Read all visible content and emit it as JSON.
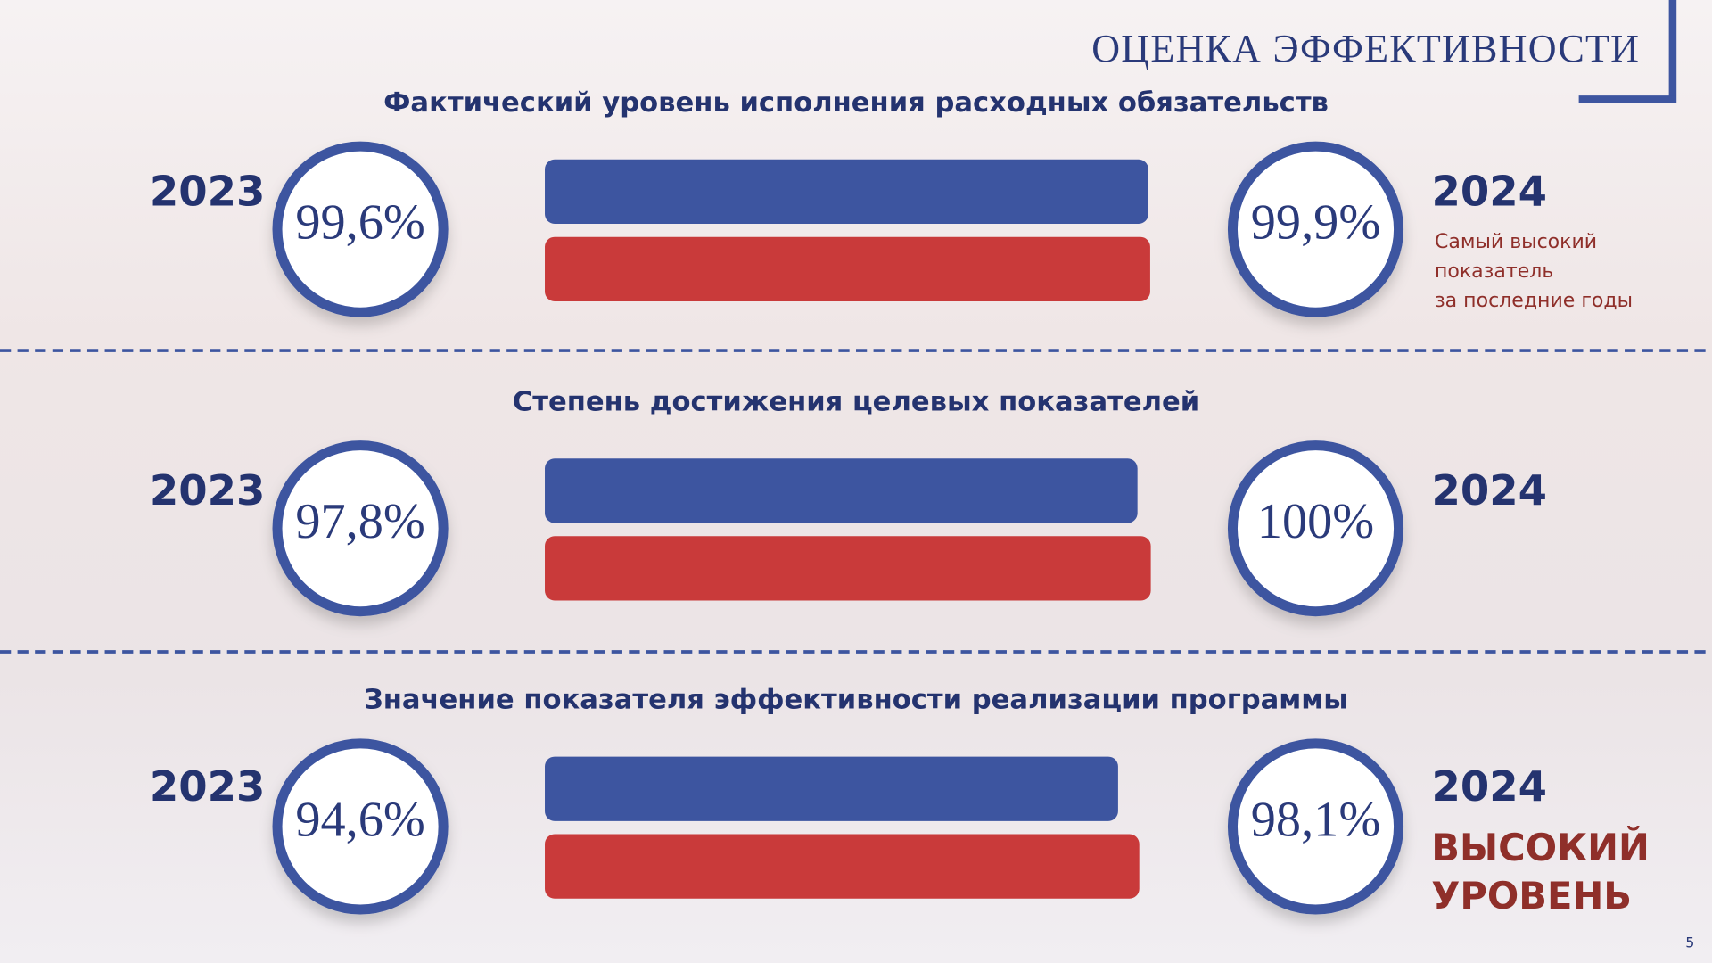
{
  "header": {
    "title": "ОЦЕНКА ЭФФЕКТИВНОСТИ"
  },
  "page_number": "5",
  "chart_data": [
    {
      "type": "bar",
      "title": "Фактический уровень исполнения расходных обязательств",
      "categories": [
        "2023",
        "2024"
      ],
      "values": [
        99.6,
        99.9
      ],
      "value_labels": [
        "99,6%",
        "99,9%"
      ],
      "colors": [
        "#3d55a0",
        "#c93a3a"
      ],
      "annotation": [
        "Самый высокий",
        "показатель",
        "за последние годы"
      ]
    },
    {
      "type": "bar",
      "title": "Степень достижения целевых показателей",
      "categories": [
        "2023",
        "2024"
      ],
      "values": [
        97.8,
        100
      ],
      "value_labels": [
        "97,8%",
        "100%"
      ],
      "colors": [
        "#3d55a0",
        "#c93a3a"
      ]
    },
    {
      "type": "bar",
      "title": "Значение показателя эффективности реализации программы",
      "categories": [
        "2023",
        "2024"
      ],
      "values": [
        94.6,
        98.1
      ],
      "value_labels": [
        "94,6%",
        "98,1%"
      ],
      "colors": [
        "#3d55a0",
        "#c93a3a"
      ],
      "annotation": [
        "ВЫСОКИЙ",
        "УРОВЕНЬ"
      ]
    }
  ]
}
